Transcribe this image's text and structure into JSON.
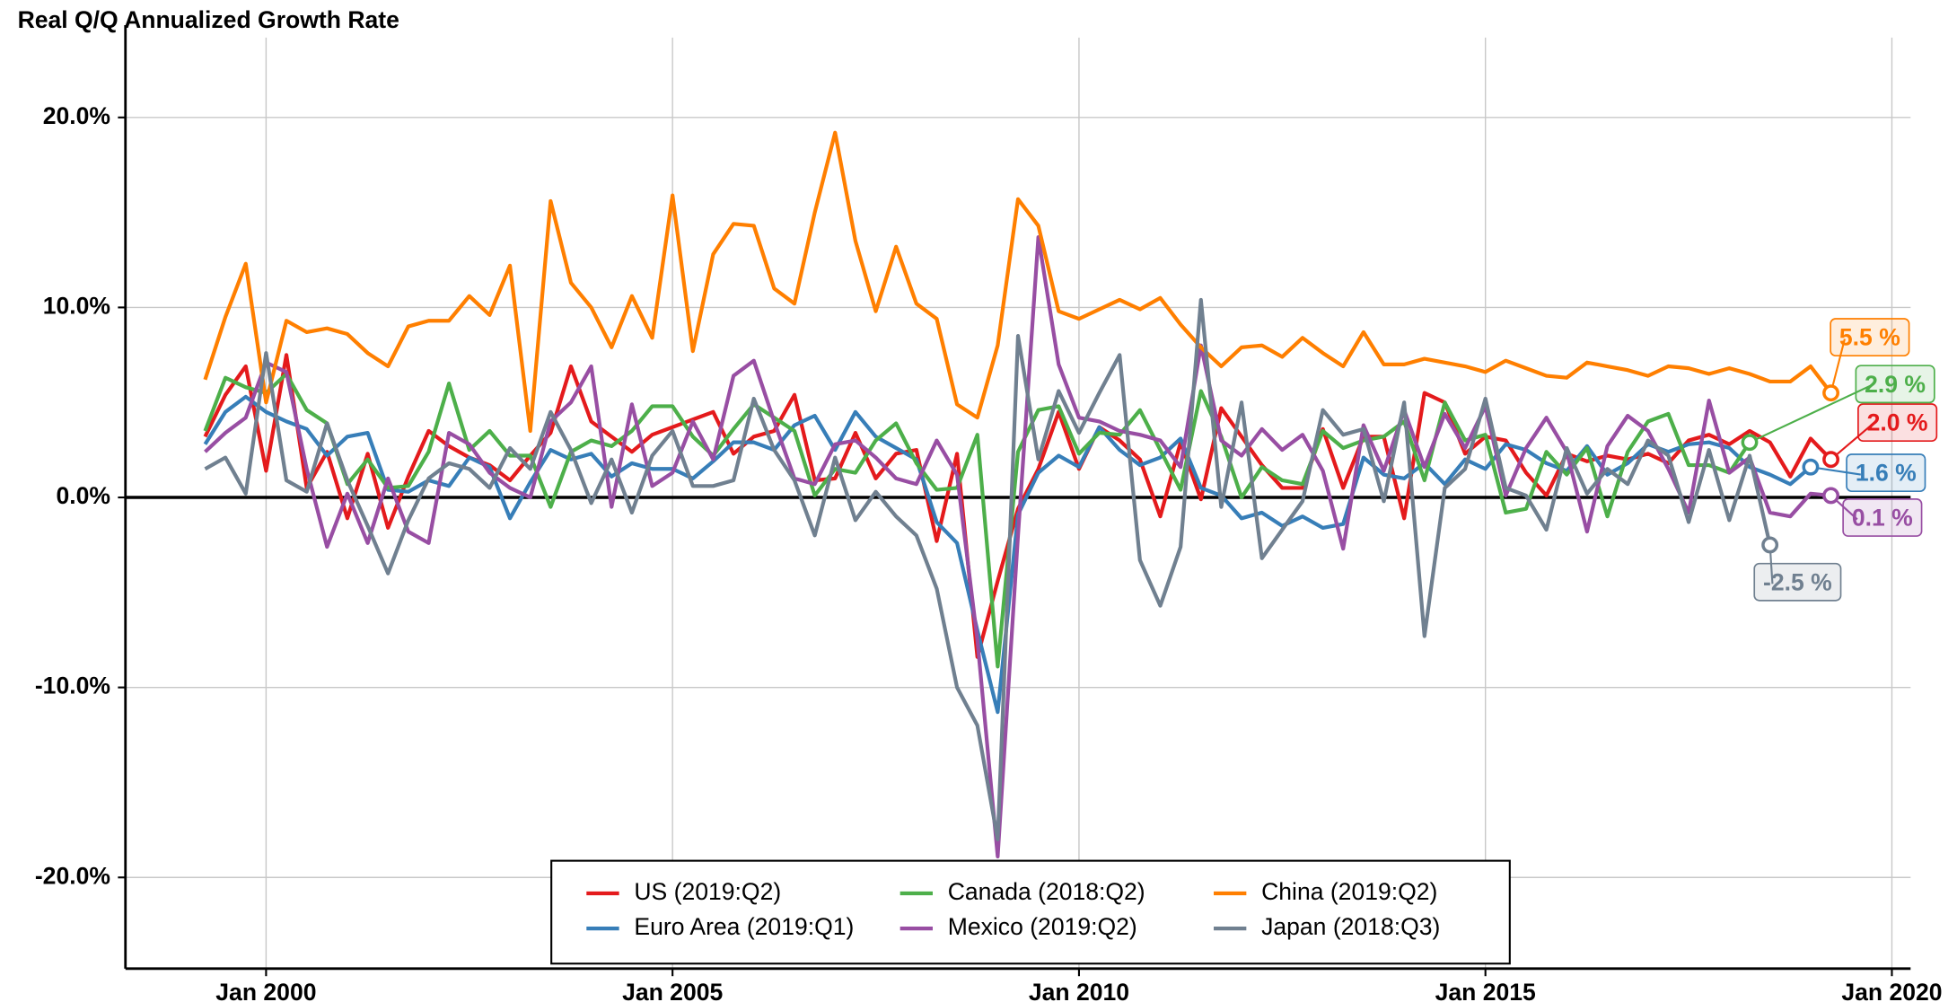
{
  "chart_data": {
    "type": "line",
    "title": "Real Q/Q Annualized Growth Rate",
    "x": [
      1999.25,
      1999.5,
      1999.75,
      2000.0,
      2000.25,
      2000.5,
      2000.75,
      2001.0,
      2001.25,
      2001.5,
      2001.75,
      2002.0,
      2002.25,
      2002.5,
      2002.75,
      2003.0,
      2003.25,
      2003.5,
      2003.75,
      2004.0,
      2004.25,
      2004.5,
      2004.75,
      2005.0,
      2005.25,
      2005.5,
      2005.75,
      2006.0,
      2006.25,
      2006.5,
      2006.75,
      2007.0,
      2007.25,
      2007.5,
      2007.75,
      2008.0,
      2008.25,
      2008.5,
      2008.75,
      2009.0,
      2009.25,
      2009.5,
      2009.75,
      2010.0,
      2010.25,
      2010.5,
      2010.75,
      2011.0,
      2011.25,
      2011.5,
      2011.75,
      2012.0,
      2012.25,
      2012.5,
      2012.75,
      2013.0,
      2013.25,
      2013.5,
      2013.75,
      2014.0,
      2014.25,
      2014.5,
      2014.75,
      2015.0,
      2015.25,
      2015.5,
      2015.75,
      2016.0,
      2016.25,
      2016.5,
      2016.75,
      2017.0,
      2017.25,
      2017.5,
      2017.75,
      2018.0,
      2018.25,
      2018.5,
      2018.75,
      2019.0,
      2019.25
    ],
    "xlim": [
      1998.27,
      2020.23
    ],
    "xticks": [
      {
        "value": 2000,
        "label": "Jan 2000"
      },
      {
        "value": 2005,
        "label": "Jan 2005"
      },
      {
        "value": 2010,
        "label": "Jan 2010"
      },
      {
        "value": 2015,
        "label": "Jan 2015"
      },
      {
        "value": 2020,
        "label": "Jan 2020"
      }
    ],
    "ylim": [
      -24.8,
      24.2
    ],
    "yticks": [
      {
        "value": 20,
        "label": "20.0%"
      },
      {
        "value": 10,
        "label": "10.0%"
      },
      {
        "value": 0,
        "label": "0.0%"
      },
      {
        "value": -10,
        "label": "-10.0%"
      },
      {
        "value": -20,
        "label": "-20.0%"
      }
    ],
    "grid": true,
    "legend": "lower center",
    "series": [
      {
        "name": "US (2019:Q2)",
        "color": "#e41a1c",
        "end_label": "2.0 %",
        "values": [
          3.2,
          5.4,
          6.9,
          1.4,
          7.5,
          0.5,
          2.4,
          -1.1,
          2.3,
          -1.6,
          1.1,
          3.5,
          2.7,
          2.1,
          1.7,
          0.9,
          2.2,
          3.4,
          6.9,
          4.0,
          3.2,
          2.4,
          3.3,
          3.7,
          4.1,
          4.5,
          2.3,
          3.2,
          3.5,
          5.4,
          0.9,
          1.0,
          3.4,
          1.0,
          2.3,
          2.5,
          -2.3,
          2.3,
          -8.4,
          -4.4,
          -0.6,
          1.5,
          4.5,
          1.5,
          3.7,
          3.0,
          2.0,
          -1.0,
          2.9,
          -0.1,
          4.7,
          3.2,
          1.7,
          0.5,
          0.5,
          3.6,
          0.5,
          3.2,
          3.2,
          -1.1,
          5.5,
          5.0,
          2.3,
          3.2,
          3.0,
          1.3,
          0.1,
          2.3,
          1.9,
          2.2,
          2.0,
          2.3,
          1.8,
          3.0,
          3.3,
          2.8,
          3.5,
          2.9,
          1.1,
          3.1,
          2.0
        ]
      },
      {
        "name": "Euro Area (2019:Q1)",
        "color": "#377eb8",
        "end_label": "1.6 %",
        "values": [
          2.8,
          4.5,
          5.3,
          4.5,
          4.0,
          3.6,
          2.2,
          3.2,
          3.4,
          0.4,
          0.3,
          0.9,
          0.6,
          2.1,
          1.6,
          -1.1,
          0.8,
          2.5,
          2.0,
          2.3,
          1.1,
          1.8,
          1.5,
          1.5,
          1.0,
          1.9,
          2.9,
          2.9,
          2.5,
          3.8,
          4.3,
          2.5,
          4.5,
          3.2,
          2.6,
          2.0,
          -1.3,
          -2.4,
          -7.0,
          -11.3,
          -0.9,
          1.3,
          2.2,
          1.6,
          3.7,
          2.5,
          1.7,
          2.1,
          3.1,
          0.5,
          0.1,
          -1.1,
          -0.8,
          -1.5,
          -1.0,
          -1.6,
          -1.4,
          2.1,
          1.2,
          1.0,
          1.8,
          0.7,
          2.0,
          1.5,
          2.8,
          2.5,
          1.8,
          1.4,
          2.7,
          1.2,
          1.8,
          2.8,
          2.4,
          2.8,
          2.9,
          2.6,
          1.6,
          1.2,
          0.7,
          1.6,
          null
        ]
      },
      {
        "name": "Canada (2018:Q2)",
        "color": "#4daf4a",
        "end_label": "2.9 %",
        "values": [
          3.5,
          6.3,
          5.8,
          5.5,
          6.5,
          4.6,
          3.9,
          0.7,
          2.0,
          0.5,
          0.6,
          2.4,
          6.0,
          2.5,
          3.5,
          2.2,
          2.2,
          -0.5,
          2.4,
          3.0,
          2.7,
          3.5,
          4.8,
          4.8,
          3.2,
          2.2,
          3.6,
          4.9,
          4.2,
          3.5,
          0.1,
          1.5,
          1.3,
          3.0,
          3.9,
          1.8,
          0.4,
          0.5,
          3.3,
          -8.9,
          2.4,
          4.6,
          4.8,
          2.3,
          3.4,
          3.3,
          4.6,
          2.5,
          0.4,
          5.6,
          3.2,
          0.0,
          1.6,
          0.9,
          0.7,
          3.5,
          2.6,
          3.0,
          3.2,
          4.0,
          0.9,
          5.0,
          3.0,
          3.3,
          -0.8,
          -0.6,
          2.4,
          1.2,
          2.6,
          -1.0,
          2.4,
          4.0,
          4.4,
          1.7,
          1.7,
          1.3,
          2.9,
          null,
          null,
          null,
          null
        ]
      },
      {
        "name": "Mexico (2019:Q2)",
        "color": "#984ea3",
        "end_label": "0.1 %",
        "values": [
          2.4,
          3.4,
          4.2,
          7.1,
          6.6,
          1.5,
          -2.6,
          0.2,
          -2.4,
          1.0,
          -1.8,
          -2.4,
          3.4,
          2.8,
          1.3,
          0.5,
          0.0,
          4.0,
          5.0,
          6.9,
          -0.5,
          4.9,
          0.6,
          1.3,
          4.0,
          2.0,
          6.4,
          7.2,
          4.0,
          1.0,
          0.7,
          2.8,
          3.0,
          2.1,
          1.0,
          0.7,
          3.0,
          1.2,
          -7.5,
          -18.9,
          -2.0,
          13.7,
          7.0,
          4.2,
          4.0,
          3.5,
          3.3,
          3.0,
          1.6,
          8.0,
          3.0,
          2.2,
          3.6,
          2.5,
          3.3,
          1.4,
          -2.7,
          3.8,
          1.4,
          4.6,
          1.6,
          4.4,
          2.6,
          4.8,
          0.1,
          2.6,
          4.2,
          2.4,
          -1.8,
          2.7,
          4.3,
          3.5,
          1.5,
          -0.8,
          5.1,
          1.3,
          2.1,
          -0.8,
          -1.0,
          0.2,
          0.1
        ]
      },
      {
        "name": "China (2019:Q2)",
        "color": "#ff7f00",
        "end_label": "5.5 %",
        "values": [
          6.2,
          9.5,
          12.3,
          5.0,
          9.3,
          8.7,
          8.9,
          8.6,
          7.6,
          6.9,
          9.0,
          9.3,
          9.3,
          10.6,
          9.6,
          12.2,
          3.5,
          15.6,
          11.3,
          10.0,
          7.9,
          10.6,
          8.4,
          15.9,
          7.7,
          12.8,
          14.4,
          14.3,
          11.0,
          10.2,
          15.0,
          19.2,
          13.5,
          9.8,
          13.2,
          10.2,
          9.4,
          4.9,
          4.2,
          8.0,
          15.7,
          14.3,
          9.8,
          9.4,
          9.9,
          10.4,
          9.9,
          10.5,
          9.1,
          7.9,
          6.9,
          7.9,
          8.0,
          7.4,
          8.4,
          7.6,
          6.9,
          8.7,
          7.0,
          7.0,
          7.3,
          7.1,
          6.9,
          6.6,
          7.2,
          6.8,
          6.4,
          6.3,
          7.1,
          6.9,
          6.7,
          6.4,
          6.9,
          6.8,
          6.5,
          6.8,
          6.5,
          6.1,
          6.1,
          6.9,
          5.5
        ]
      },
      {
        "name": "Japan (2018:Q3)",
        "color": "#708090",
        "end_label": "-2.5 %",
        "values": [
          1.5,
          2.1,
          0.2,
          7.6,
          0.9,
          0.3,
          3.9,
          0.9,
          -1.5,
          -4.0,
          -1.2,
          1.0,
          1.8,
          1.5,
          0.5,
          2.6,
          1.5,
          4.5,
          2.5,
          -0.3,
          2.0,
          -0.8,
          2.2,
          3.5,
          0.6,
          0.6,
          0.9,
          5.2,
          2.5,
          0.9,
          -2.0,
          2.1,
          -1.2,
          0.3,
          -1.0,
          -2.0,
          -4.8,
          -10.0,
          -12.0,
          -18.0,
          8.5,
          2.0,
          5.6,
          3.4,
          5.5,
          7.5,
          -3.3,
          -5.7,
          -2.6,
          10.4,
          -0.5,
          5.0,
          -3.2,
          -1.7,
          -0.2,
          4.6,
          3.3,
          3.6,
          -0.2,
          5.0,
          -7.3,
          0.5,
          1.5,
          5.2,
          0.5,
          0.1,
          -1.7,
          2.6,
          0.2,
          1.5,
          0.7,
          3.0,
          2.2,
          -1.3,
          2.5,
          -1.2,
          2.2,
          -2.5,
          null,
          null,
          null
        ]
      }
    ]
  }
}
